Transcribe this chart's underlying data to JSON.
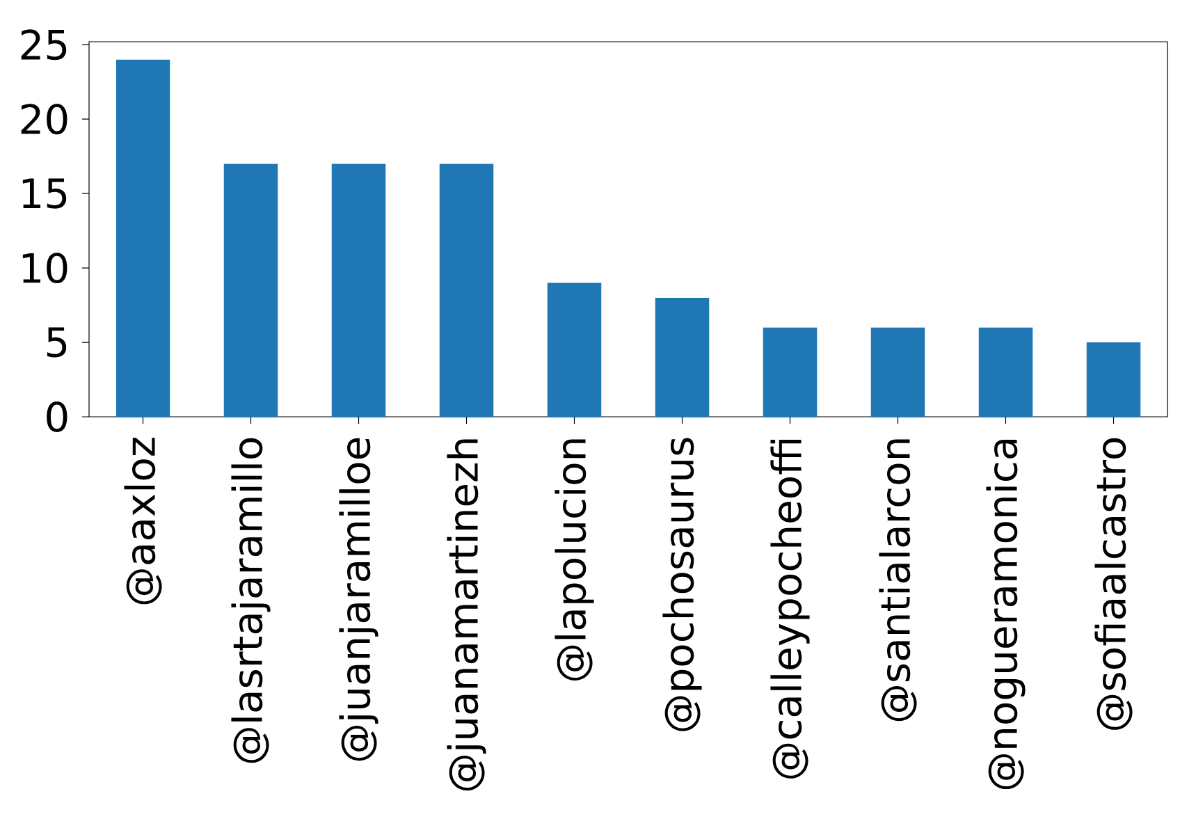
{
  "chart_data": {
    "type": "bar",
    "categories": [
      "@aaxloz",
      "@lasrtajaramillo",
      "@juanjaramilloe",
      "@juanamartinezh",
      "@lapolucion",
      "@pochosaurus",
      "@calleypocheoffi",
      "@santialarcon",
      "@nogueramonica",
      "@sofiaalcastro"
    ],
    "values": [
      24,
      17,
      17,
      17,
      9,
      8,
      6,
      6,
      6,
      5
    ],
    "color": "#1f77b4",
    "ylim": [
      0,
      25.2
    ],
    "yticks": [
      0,
      5,
      10,
      15,
      20,
      25
    ],
    "grid": false
  }
}
